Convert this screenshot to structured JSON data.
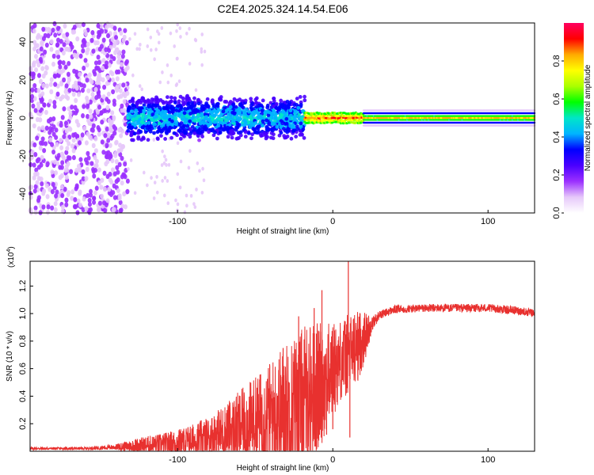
{
  "figure": {
    "title": "C2E4.2025.324.14.54.E06"
  },
  "chart_data": [
    {
      "type": "heatmap",
      "title": "",
      "xlabel": "Height of straight line (km)",
      "ylabel": "Frequency (Hz)",
      "xlim": [
        -195,
        130
      ],
      "ylim": [
        -50,
        50
      ],
      "xticks": [
        -100,
        0,
        100
      ],
      "xtick_labels": [
        "-100",
        "0",
        "100"
      ],
      "yticks": [
        -40,
        -20,
        0,
        20,
        40
      ],
      "ytick_labels": [
        "-40",
        "-20",
        "0",
        "20",
        "40"
      ],
      "grid": false,
      "description_of_regions": [
        {
          "x_range": [
            -195,
            -132
          ],
          "pattern": "scattered broadband",
          "amplitude_range": [
            0.05,
            0.2
          ]
        },
        {
          "x_range": [
            -132,
            -18
          ],
          "pattern": "band around 0 Hz, width about +/-12 Hz",
          "amplitude_range": [
            0.2,
            0.55
          ]
        },
        {
          "x_range": [
            -18,
            20
          ],
          "pattern": "narrow band with red peaks near 0 Hz",
          "amplitude_range": [
            0.5,
            0.95
          ]
        },
        {
          "x_range": [
            20,
            130
          ],
          "pattern": "narrow band centered at 0 Hz",
          "amplitude_range": [
            0.5,
            0.9
          ]
        }
      ],
      "colorbar": {
        "label": "Normalized spectral amplitude",
        "range": [
          0,
          1
        ],
        "ticks": [
          0.0,
          0.2,
          0.4,
          0.6,
          0.8
        ],
        "tick_labels": [
          "0.0",
          "0.2",
          "0.4",
          "0.6",
          "0.8"
        ],
        "colors": [
          "#ffffff",
          "#e6c8fa",
          "#9b30ff",
          "#4a00ff",
          "#0000ff",
          "#00b4ff",
          "#00e6c8",
          "#00ff00",
          "#aaff00",
          "#ffff00",
          "#ffaa00",
          "#ff0000",
          "#ff0060"
        ]
      }
    },
    {
      "type": "line",
      "title": "",
      "xlabel": "Height of straight line (km)",
      "ylabel": "SNR (10 * v/v)",
      "scale_note_base": "(x10",
      "scale_note_exp": "4",
      "scale_note_end": ")",
      "xlim": [
        -195,
        130
      ],
      "ylim": [
        0,
        1.38
      ],
      "xticks": [
        -100,
        0,
        100
      ],
      "xtick_labels": [
        "-100",
        "0",
        "100"
      ],
      "yticks": [
        0.2,
        0.4,
        0.6,
        0.8,
        1.0,
        1.2
      ],
      "ytick_labels": [
        "0.2",
        "0.4",
        "0.6",
        "0.8",
        "1.0",
        "1.2"
      ],
      "grid": false,
      "series": [
        {
          "name": "SNR",
          "color": "#e8312f",
          "envelope": {
            "x": [
              -195,
              -160,
              -140,
              -125,
              -110,
              -100,
              -90,
              -80,
              -70,
              -60,
              -50,
              -40,
              -30,
              -20,
              -15,
              -10,
              -5,
              0,
              5,
              10,
              15,
              20,
              25,
              30,
              40,
              60,
              80,
              100,
              120,
              130
            ],
            "baseline": [
              0.02,
              0.02,
              0.03,
              0.04,
              0.05,
              0.06,
              0.08,
              0.1,
              0.14,
              0.18,
              0.22,
              0.26,
              0.3,
              0.35,
              0.4,
              0.45,
              0.52,
              0.6,
              0.66,
              0.7,
              0.75,
              0.82,
              0.92,
              0.99,
              1.03,
              1.04,
              1.04,
              1.04,
              1.02,
              1.0
            ],
            "amplitude": [
              0.01,
              0.01,
              0.02,
              0.06,
              0.08,
              0.1,
              0.12,
              0.15,
              0.2,
              0.26,
              0.32,
              0.4,
              0.5,
              0.55,
              0.55,
              0.5,
              0.4,
              0.35,
              0.3,
              0.3,
              0.28,
              0.2,
              0.06,
              0.03,
              0.03,
              0.03,
              0.03,
              0.03,
              0.03,
              0.03
            ]
          },
          "peaks": [
            {
              "x": 10,
              "y": 1.38
            },
            {
              "x": 11,
              "y": 0.1
            },
            {
              "x": -7,
              "y": 1.17
            },
            {
              "x": -4,
              "y": 0.12
            },
            {
              "x": -12,
              "y": 1.04
            },
            {
              "x": -22,
              "y": 0.98
            },
            {
              "x": -32,
              "y": 0.75
            },
            {
              "x": 2,
              "y": 0.72
            },
            {
              "x": 0,
              "y": 0.16
            }
          ]
        }
      ]
    }
  ]
}
